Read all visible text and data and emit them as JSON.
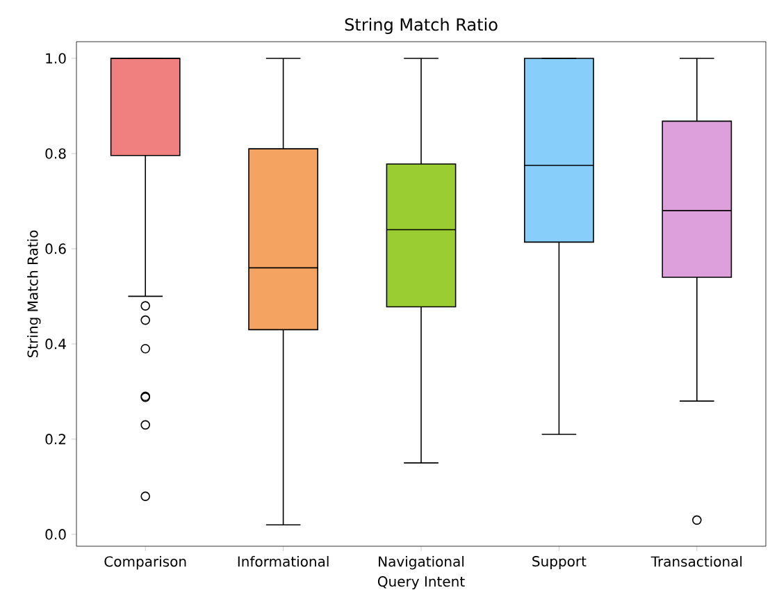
{
  "chart_data": {
    "type": "box",
    "title": "String Match Ratio",
    "xlabel": "Query Intent",
    "ylabel": "String Match Ratio",
    "categories": [
      "Comparison",
      "Informational",
      "Navigational",
      "Support",
      "Transactional"
    ],
    "colors": [
      "#f08080",
      "#f4a460",
      "#9acd32",
      "#87cefa",
      "#dda0dd"
    ],
    "boxes": [
      {
        "low": 0.5,
        "q1": 0.796,
        "median": 1.0,
        "q3": 1.0,
        "high": 1.0,
        "outliers": [
          0.48,
          0.45,
          0.39,
          0.29,
          0.288,
          0.23,
          0.08
        ]
      },
      {
        "low": 0.02,
        "q1": 0.43,
        "median": 0.56,
        "q3": 0.81,
        "high": 1.0
      },
      {
        "low": 0.15,
        "q1": 0.478,
        "median": 0.64,
        "q3": 0.778,
        "high": 1.0
      },
      {
        "low": 0.21,
        "q1": 0.614,
        "median": 0.775,
        "q3": 1.0,
        "high": 1.0
      },
      {
        "low": 0.28,
        "q1": 0.54,
        "median": 0.68,
        "q3": 0.868,
        "high": 1.0,
        "outliers": [
          0.03
        ]
      }
    ],
    "ylim": [
      -0.025,
      1.035
    ],
    "yticks": [
      {
        "value": 0,
        "label": "0.0"
      },
      {
        "value": 0.2,
        "label": "0.2"
      },
      {
        "value": 0.4,
        "label": "0.4"
      },
      {
        "value": 0.6,
        "label": "0.6"
      },
      {
        "value": 0.8,
        "label": "0.8"
      },
      {
        "value": 1.0,
        "label": "1.0"
      }
    ]
  }
}
